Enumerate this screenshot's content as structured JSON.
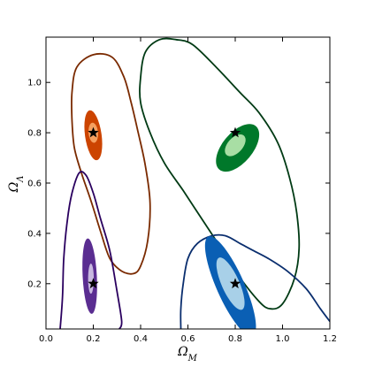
{
  "chart_data": {
    "type": "contour",
    "xlabel": "Ω_M",
    "ylabel": "Ω_Λ",
    "xlabel_main": "Ω",
    "xlabel_sub": "M",
    "ylabel_main": "Ω",
    "ylabel_sub": "Λ",
    "xlim": [
      0.0,
      1.2
    ],
    "ylim": [
      0.02,
      1.18
    ],
    "xticks": [
      "0.0",
      "0.2",
      "0.4",
      "0.6",
      "0.8",
      "1.0",
      "1.2"
    ],
    "yticks": [
      "0.2",
      "0.4",
      "0.6",
      "0.8",
      "1.0"
    ],
    "grid": false,
    "legend": "none",
    "series": [
      {
        "color_outer": "#7a2a00",
        "color_fill": "#cc4400",
        "color_inner": "#f5a060",
        "star": [
          0.2,
          0.8
        ],
        "inner": {
          "cx": 0.2,
          "cy": 0.8,
          "rx": 0.02,
          "ry": 0.04,
          "angle": -5
        },
        "mid": {
          "cx": 0.2,
          "cy": 0.79,
          "rx": 0.035,
          "ry": 0.1,
          "angle": -8
        },
        "outer": [
          [
            0.13,
            1.06
          ],
          [
            0.2,
            1.11
          ],
          [
            0.28,
            1.1
          ],
          [
            0.33,
            1.02
          ],
          [
            0.36,
            0.92
          ],
          [
            0.39,
            0.8
          ],
          [
            0.42,
            0.67
          ],
          [
            0.44,
            0.52
          ],
          [
            0.43,
            0.37
          ],
          [
            0.4,
            0.27
          ],
          [
            0.37,
            0.24
          ],
          [
            0.32,
            0.25
          ],
          [
            0.27,
            0.3
          ],
          [
            0.23,
            0.41
          ],
          [
            0.19,
            0.53
          ],
          [
            0.15,
            0.64
          ],
          [
            0.12,
            0.74
          ],
          [
            0.11,
            0.85
          ],
          [
            0.11,
            0.96
          ]
        ]
      },
      {
        "color_outer": "#2a005f",
        "color_fill": "#5a2d91",
        "color_inner": "#c8b8e0",
        "star": [
          0.2,
          0.2
        ],
        "inner": {
          "cx": 0.19,
          "cy": 0.22,
          "rx": 0.012,
          "ry": 0.06,
          "angle": 0
        },
        "mid": {
          "cx": 0.185,
          "cy": 0.23,
          "rx": 0.03,
          "ry": 0.15,
          "angle": -3
        },
        "outer": [
          [
            0.06,
            0.02
          ],
          [
            0.07,
            0.15
          ],
          [
            0.075,
            0.3
          ],
          [
            0.09,
            0.45
          ],
          [
            0.11,
            0.56
          ],
          [
            0.14,
            0.64
          ],
          [
            0.17,
            0.63
          ],
          [
            0.2,
            0.56
          ],
          [
            0.23,
            0.46
          ],
          [
            0.27,
            0.33
          ],
          [
            0.3,
            0.17
          ],
          [
            0.32,
            0.05
          ],
          [
            0.31,
            0.02
          ]
        ]
      },
      {
        "color_outer": "#003a14",
        "color_fill": "#00782a",
        "color_inner": "#a8dea4",
        "star": [
          0.8,
          0.8
        ],
        "inner": {
          "cx": 0.8,
          "cy": 0.75,
          "rx": 0.055,
          "ry": 0.03,
          "angle": -48
        },
        "mid": {
          "cx": 0.81,
          "cy": 0.74,
          "rx": 0.12,
          "ry": 0.06,
          "angle": -50
        },
        "outer": [
          [
            0.48,
            1.17
          ],
          [
            0.55,
            1.17
          ],
          [
            0.62,
            1.15
          ],
          [
            0.72,
            1.06
          ],
          [
            0.82,
            0.96
          ],
          [
            0.9,
            0.88
          ],
          [
            0.98,
            0.76
          ],
          [
            1.03,
            0.62
          ],
          [
            1.06,
            0.48
          ],
          [
            1.07,
            0.34
          ],
          [
            1.05,
            0.22
          ],
          [
            1.0,
            0.12
          ],
          [
            0.95,
            0.1
          ],
          [
            0.9,
            0.13
          ],
          [
            0.8,
            0.25
          ],
          [
            0.72,
            0.37
          ],
          [
            0.65,
            0.47
          ],
          [
            0.58,
            0.57
          ],
          [
            0.5,
            0.68
          ],
          [
            0.44,
            0.8
          ],
          [
            0.4,
            0.92
          ],
          [
            0.4,
            1.02
          ],
          [
            0.42,
            1.12
          ]
        ]
      },
      {
        "color_outer": "#0a2e6e",
        "color_fill": "#0a5fb4",
        "color_inner": "#a8d0e8",
        "star": [
          0.8,
          0.2
        ],
        "inner": {
          "cx": 0.78,
          "cy": 0.2,
          "rx": 0.12,
          "ry": 0.035,
          "angle": 66
        },
        "mid": {
          "cx": 0.78,
          "cy": 0.19,
          "rx": 0.23,
          "ry": 0.055,
          "angle": 66
        },
        "outer": [
          [
            0.57,
            0.02
          ],
          [
            0.57,
            0.1
          ],
          [
            0.58,
            0.2
          ],
          [
            0.6,
            0.3
          ],
          [
            0.64,
            0.36
          ],
          [
            0.7,
            0.39
          ],
          [
            0.76,
            0.39
          ],
          [
            0.82,
            0.36
          ],
          [
            0.88,
            0.33
          ],
          [
            0.94,
            0.3
          ],
          [
            1.02,
            0.25
          ],
          [
            1.1,
            0.18
          ],
          [
            1.16,
            0.1
          ],
          [
            1.2,
            0.05
          ]
        ]
      }
    ]
  }
}
